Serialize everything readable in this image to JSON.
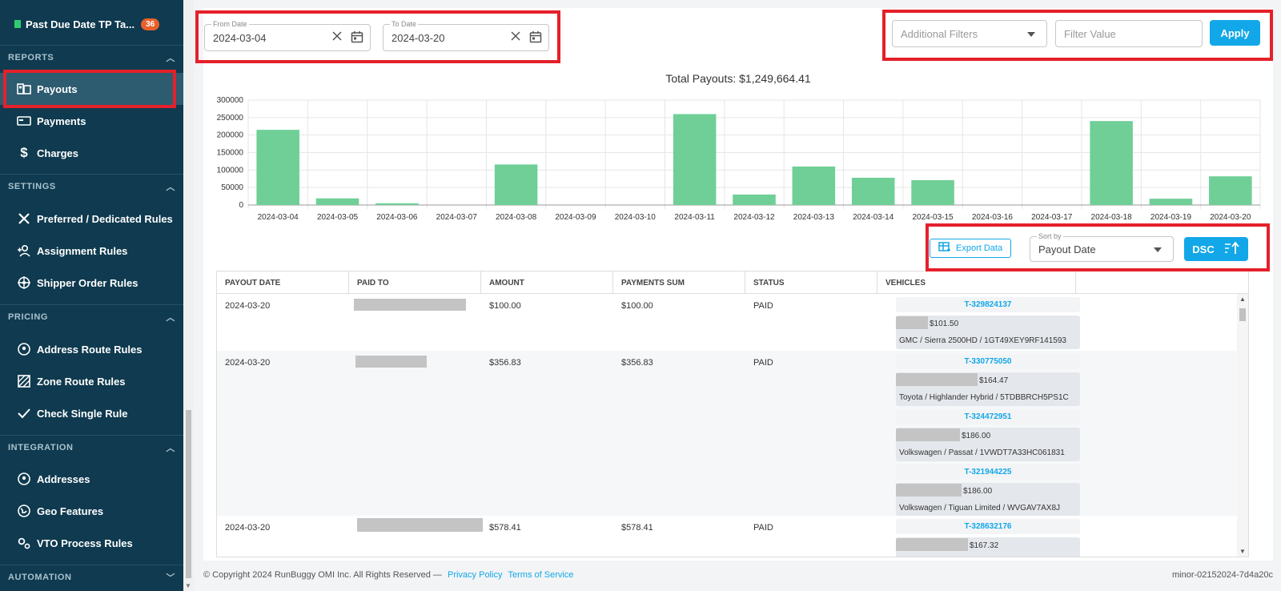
{
  "sidebar": {
    "top_item": {
      "label": "Past Due Date TP Ta...",
      "badge": "36"
    },
    "sections": [
      {
        "label": "REPORTS",
        "chevron": "chevron-up-icon"
      },
      {
        "label": "SETTINGS",
        "chevron": "chevron-up-icon"
      },
      {
        "label": "PRICING",
        "chevron": "chevron-up-icon"
      },
      {
        "label": "INTEGRATION",
        "chevron": "chevron-up-icon"
      },
      {
        "label": "AUTOMATION",
        "chevron": "chevron-down-icon"
      }
    ],
    "items": [
      {
        "label": "Payouts",
        "icon": "payouts-icon",
        "active": true
      },
      {
        "label": "Payments",
        "icon": "payments-icon"
      },
      {
        "label": "Charges",
        "icon": "dollar-icon"
      },
      {
        "label": "Preferred / Dedicated Rules",
        "icon": "tools-icon"
      },
      {
        "label": "Assignment Rules",
        "icon": "user-add-icon"
      },
      {
        "label": "Shipper Order Rules",
        "icon": "wheel-icon"
      },
      {
        "label": "Address Route Rules",
        "icon": "location-icon"
      },
      {
        "label": "Zone Route Rules",
        "icon": "zone-icon"
      },
      {
        "label": "Check Single Rule",
        "icon": "check-icon"
      },
      {
        "label": "Addresses",
        "icon": "location-icon"
      },
      {
        "label": "Geo Features",
        "icon": "globe-icon"
      },
      {
        "label": "VTO Process Rules",
        "icon": "gears-icon"
      }
    ]
  },
  "filters": {
    "from_date": {
      "legend": "From Date",
      "value": "2024-03-04"
    },
    "to_date": {
      "legend": "To Date",
      "value": "2024-03-20"
    },
    "additional_filters": {
      "placeholder": "Additional Filters"
    },
    "filter_value": {
      "placeholder": "Filter Value"
    },
    "apply_label": "Apply"
  },
  "total_payouts": "Total Payouts: $1,249,664.41",
  "chart_data": {
    "type": "bar",
    "categories": [
      "2024-03-04",
      "2024-03-05",
      "2024-03-06",
      "2024-03-07",
      "2024-03-08",
      "2024-03-09",
      "2024-03-10",
      "2024-03-11",
      "2024-03-12",
      "2024-03-13",
      "2024-03-14",
      "2024-03-15",
      "2024-03-16",
      "2024-03-17",
      "2024-03-18",
      "2024-03-19",
      "2024-03-20"
    ],
    "values": [
      215000,
      19000,
      5000,
      0,
      116000,
      0,
      0,
      260000,
      30000,
      110000,
      78000,
      71000,
      0,
      0,
      240000,
      18000,
      82000
    ],
    "yticks": [
      "300000",
      "250000",
      "200000",
      "150000",
      "100000",
      "50000",
      "0"
    ],
    "ylim": [
      0,
      300000
    ],
    "color": "#6fcf97",
    "grid": true
  },
  "toolbar": {
    "export_label": "Export Data",
    "sort_legend": "Sort by",
    "sort_value": "Payout Date",
    "order_label": "DSC"
  },
  "table": {
    "headers": [
      "PAYOUT DATE",
      "PAID TO",
      "AMOUNT",
      "PAYMENTS SUM",
      "STATUS",
      "VEHICLES"
    ],
    "rows": [
      {
        "payout_date": "2024-03-20",
        "amount": "$100.00",
        "payments_sum": "$100.00",
        "status": "PAID",
        "vehicles": [
          {
            "id": "T-329824137",
            "price": "$101.50",
            "desc": "GMC / Sierra 2500HD / 1GT49XEY9RF141593"
          }
        ]
      },
      {
        "payout_date": "2024-03-20",
        "amount": "$356.83",
        "payments_sum": "$356.83",
        "status": "PAID",
        "vehicles": [
          {
            "id": "T-330775050",
            "price": "$164.47",
            "desc": "Toyota / Highlander Hybrid / 5TDBBRCH5PS1C"
          },
          {
            "id": "T-324472951",
            "price": "$186.00",
            "desc": "Volkswagen / Passat / 1VWDT7A33HC061831"
          },
          {
            "id": "T-321944225",
            "price": "$186.00",
            "desc": "Volkswagen / Tiguan Limited / WVGAV7AX8J"
          }
        ]
      },
      {
        "payout_date": "2024-03-20",
        "amount": "$578.41",
        "payments_sum": "$578.41",
        "status": "PAID",
        "vehicles": [
          {
            "id": "T-328632176",
            "price": "$167.32",
            "desc": ""
          }
        ]
      }
    ]
  },
  "footer": {
    "copyright": "© Copyright 2024 RunBuggy OMI Inc. All Rights Reserved —",
    "privacy": "Privacy Policy",
    "terms": "Terms of Service",
    "version": "minor-02152024-7d4a20c"
  }
}
